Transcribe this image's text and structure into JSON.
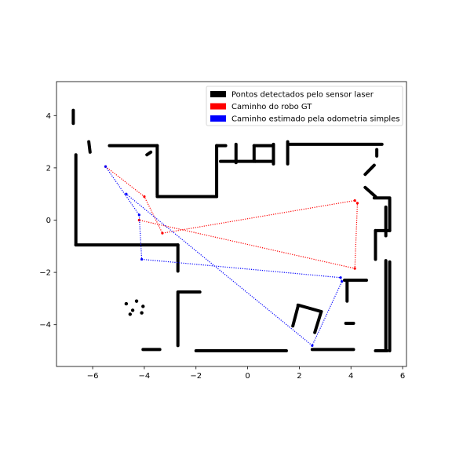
{
  "chart_data": {
    "type": "scatter",
    "title": "",
    "xlabel": "",
    "ylabel": "",
    "xlim": [
      -7.4,
      6.15
    ],
    "ylim": [
      -5.6,
      5.3
    ],
    "x_ticks": [
      -6,
      -4,
      -2,
      0,
      2,
      4,
      6
    ],
    "y_ticks": [
      -4,
      -2,
      0,
      2,
      4
    ],
    "x_tick_labels": [
      "−6",
      "−4",
      "−2",
      "0",
      "2",
      "4",
      "6"
    ],
    "y_tick_labels": [
      "−4",
      "−2",
      "0",
      "2",
      "4"
    ],
    "grid": false,
    "legend_position": "top-right",
    "legend": [
      {
        "label": "Pontos detectados pelo sensor laser",
        "color": "#000000"
      },
      {
        "label": "Caminho do robo GT",
        "color": "#ff0000"
      },
      {
        "label": "Caminho estimado pela odometria simples",
        "color": "#0000ff"
      }
    ],
    "laser_segments": [
      [
        [
          -6.75,
          4.2
        ],
        [
          -6.75,
          3.7
        ]
      ],
      [
        [
          -6.65,
          2.5
        ],
        [
          -6.65,
          -0.95
        ]
      ],
      [
        [
          -6.65,
          -0.95
        ],
        [
          -2.7,
          -0.95
        ]
      ],
      [
        [
          -2.7,
          -0.95
        ],
        [
          -2.7,
          -1.95
        ]
      ],
      [
        [
          -6.15,
          3.0
        ],
        [
          -6.1,
          2.6
        ]
      ],
      [
        [
          -5.35,
          2.85
        ],
        [
          -3.5,
          2.85
        ]
      ],
      [
        [
          -3.5,
          2.85
        ],
        [
          -3.5,
          0.95
        ]
      ],
      [
        [
          -3.5,
          0.9
        ],
        [
          -1.2,
          0.9
        ]
      ],
      [
        [
          -1.2,
          0.9
        ],
        [
          -1.2,
          2.85
        ]
      ],
      [
        [
          -1.2,
          2.85
        ],
        [
          -0.85,
          2.85
        ]
      ],
      [
        [
          -3.75,
          2.6
        ],
        [
          -3.9,
          2.5
        ]
      ],
      [
        [
          -0.45,
          2.9
        ],
        [
          -0.45,
          2.2
        ]
      ],
      [
        [
          0.25,
          2.85
        ],
        [
          1.0,
          2.85
        ]
      ],
      [
        [
          0.3,
          2.25
        ],
        [
          1.0,
          2.25
        ]
      ],
      [
        [
          -1.05,
          2.25
        ],
        [
          0.3,
          2.25
        ]
      ],
      [
        [
          0.25,
          2.85
        ],
        [
          0.25,
          2.25
        ]
      ],
      [
        [
          1.0,
          2.9
        ],
        [
          1.0,
          2.15
        ]
      ],
      [
        [
          1.55,
          3.0
        ],
        [
          1.55,
          2.15
        ]
      ],
      [
        [
          1.6,
          2.9
        ],
        [
          5.2,
          2.9
        ]
      ],
      [
        [
          5.0,
          2.7
        ],
        [
          5.0,
          2.45
        ]
      ],
      [
        [
          4.9,
          2.1
        ],
        [
          4.55,
          1.75
        ]
      ],
      [
        [
          4.55,
          1.25
        ],
        [
          4.95,
          0.9
        ]
      ],
      [
        [
          4.9,
          0.85
        ],
        [
          5.5,
          0.85
        ]
      ],
      [
        [
          5.5,
          0.8
        ],
        [
          5.5,
          -0.4
        ]
      ],
      [
        [
          4.95,
          -0.4
        ],
        [
          5.5,
          -0.4
        ]
      ],
      [
        [
          4.95,
          -0.4
        ],
        [
          4.95,
          -1.5
        ]
      ],
      [
        [
          5.35,
          -1.55
        ],
        [
          5.35,
          -5.0
        ]
      ],
      [
        [
          5.5,
          -1.6
        ],
        [
          5.5,
          -5.0
        ]
      ],
      [
        [
          5.35,
          0.5
        ],
        [
          5.35,
          -0.6
        ]
      ],
      [
        [
          3.75,
          -2.3
        ],
        [
          4.6,
          -2.3
        ]
      ],
      [
        [
          3.85,
          -2.35
        ],
        [
          3.85,
          -3.1
        ]
      ],
      [
        [
          3.8,
          -3.95
        ],
        [
          4.1,
          -3.95
        ]
      ],
      [
        [
          -2.7,
          -2.75
        ],
        [
          -1.85,
          -2.75
        ]
      ],
      [
        [
          -2.7,
          -2.8
        ],
        [
          -2.7,
          -4.8
        ]
      ],
      [
        [
          1.95,
          -3.25
        ],
        [
          2.85,
          -3.5
        ]
      ],
      [
        [
          1.95,
          -3.3
        ],
        [
          1.75,
          -4.05
        ]
      ],
      [
        [
          2.85,
          -3.5
        ],
        [
          2.6,
          -4.3
        ]
      ],
      [
        [
          -4.05,
          -4.95
        ],
        [
          -3.4,
          -4.95
        ]
      ],
      [
        [
          -2.0,
          -5.0
        ],
        [
          1.5,
          -5.0
        ]
      ],
      [
        [
          2.5,
          -4.95
        ],
        [
          4.1,
          -4.95
        ]
      ],
      [
        [
          4.95,
          -5.0
        ],
        [
          5.4,
          -5.0
        ]
      ]
    ],
    "laser_blobs": [
      [
        -4.7,
        -3.2
      ],
      [
        -4.45,
        -3.45
      ],
      [
        -4.3,
        -3.1
      ],
      [
        -4.05,
        -3.3
      ],
      [
        -4.55,
        -3.6
      ],
      [
        -4.1,
        -3.55
      ]
    ],
    "series": [
      {
        "name": "Caminho do robo GT",
        "color": "#ff0000",
        "x": [
          -5.5,
          -4.0,
          -3.3,
          4.15,
          4.25,
          4.15,
          -4.2
        ],
        "y": [
          2.05,
          0.9,
          -0.5,
          0.75,
          0.65,
          -1.85,
          0.0
        ]
      },
      {
        "name": "Caminho estimado pela odometria simples",
        "color": "#0000ff",
        "x": [
          -5.5,
          -4.2,
          -4.1,
          3.6,
          3.65,
          2.5,
          -4.7
        ],
        "y": [
          2.05,
          0.2,
          -1.5,
          -2.2,
          -2.35,
          -4.8,
          1.0
        ]
      }
    ]
  }
}
